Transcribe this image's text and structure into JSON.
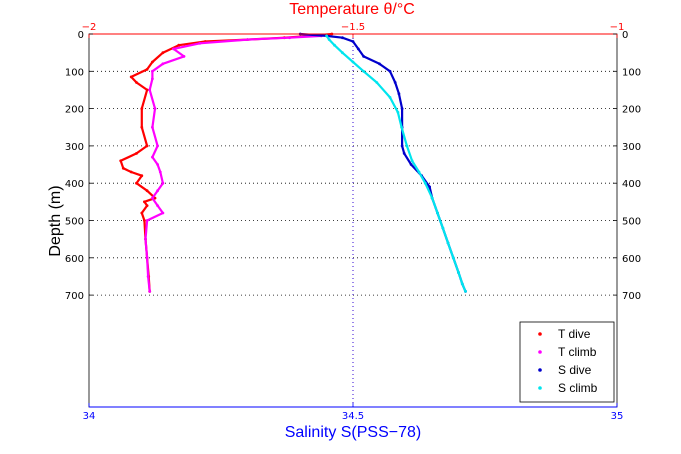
{
  "chart_data": {
    "type": "scatter",
    "top_axis": {
      "label": "Temperature θ/°C",
      "range": [
        -2,
        -1
      ],
      "ticks": [
        {
          "value": -2,
          "label": "−2"
        },
        {
          "value": -1.5,
          "label": "−1.5"
        },
        {
          "value": -1,
          "label": "−1"
        }
      ]
    },
    "bottom_axis": {
      "label": "Salinity S(PSS−78)",
      "range": [
        34,
        35
      ],
      "ticks": [
        {
          "value": 34,
          "label": "34"
        },
        {
          "value": 34.5,
          "label": "34.5"
        },
        {
          "value": 35,
          "label": "35"
        }
      ]
    },
    "y_axis": {
      "label": "Depth (m)",
      "range": [
        0,
        1000
      ],
      "inverted": true,
      "ticks": [
        {
          "value": 0,
          "label": "0"
        },
        {
          "value": 100,
          "label": "100"
        },
        {
          "value": 200,
          "label": "200"
        },
        {
          "value": 300,
          "label": "300"
        },
        {
          "value": 400,
          "label": "400"
        },
        {
          "value": 500,
          "label": "500"
        },
        {
          "value": 600,
          "label": "600"
        },
        {
          "value": 700,
          "label": "700"
        }
      ]
    },
    "grid": "dotted at labeled ticks",
    "legend_position": "bottom-right",
    "series": [
      {
        "name": "T dive",
        "axis": "top",
        "color": "#ff0000",
        "points": [
          [
            -1.54,
            0
          ],
          [
            -1.58,
            5
          ],
          [
            -1.63,
            10
          ],
          [
            -1.7,
            15
          ],
          [
            -1.78,
            20
          ],
          [
            -1.83,
            30
          ],
          [
            -1.86,
            50
          ],
          [
            -1.88,
            75
          ],
          [
            -1.89,
            95
          ],
          [
            -1.92,
            115
          ],
          [
            -1.91,
            130
          ],
          [
            -1.89,
            150
          ],
          [
            -1.9,
            200
          ],
          [
            -1.9,
            250
          ],
          [
            -1.89,
            300
          ],
          [
            -1.91,
            320
          ],
          [
            -1.94,
            340
          ],
          [
            -1.935,
            360
          ],
          [
            -1.92,
            370
          ],
          [
            -1.9,
            380
          ],
          [
            -1.91,
            400
          ],
          [
            -1.89,
            420
          ],
          [
            -1.875,
            440
          ],
          [
            -1.895,
            450
          ],
          [
            -1.89,
            460
          ],
          [
            -1.9,
            480
          ],
          [
            -1.895,
            500
          ],
          [
            -1.893,
            550
          ],
          [
            -1.89,
            600
          ],
          [
            -1.887,
            650
          ],
          [
            -1.885,
            690
          ]
        ]
      },
      {
        "name": "T climb",
        "axis": "top",
        "color": "#ff00ff",
        "points": [
          [
            -1.885,
            690
          ],
          [
            -1.888,
            650
          ],
          [
            -1.89,
            600
          ],
          [
            -1.893,
            550
          ],
          [
            -1.89,
            500
          ],
          [
            -1.86,
            480
          ],
          [
            -1.87,
            460
          ],
          [
            -1.88,
            440
          ],
          [
            -1.87,
            420
          ],
          [
            -1.86,
            400
          ],
          [
            -1.865,
            370
          ],
          [
            -1.87,
            350
          ],
          [
            -1.88,
            330
          ],
          [
            -1.87,
            300
          ],
          [
            -1.88,
            250
          ],
          [
            -1.875,
            200
          ],
          [
            -1.885,
            150
          ],
          [
            -1.88,
            120
          ],
          [
            -1.88,
            100
          ],
          [
            -1.86,
            80
          ],
          [
            -1.82,
            60
          ],
          [
            -1.84,
            40
          ],
          [
            -1.79,
            25
          ],
          [
            -1.7,
            15
          ],
          [
            -1.62,
            10
          ],
          [
            -1.56,
            5
          ]
        ]
      },
      {
        "name": "S dive",
        "axis": "bottom",
        "color": "#0000cc",
        "points": [
          [
            34.4,
            0
          ],
          [
            34.45,
            5
          ],
          [
            34.48,
            10
          ],
          [
            34.5,
            20
          ],
          [
            34.51,
            40
          ],
          [
            34.52,
            60
          ],
          [
            34.55,
            80
          ],
          [
            34.57,
            100
          ],
          [
            34.58,
            130
          ],
          [
            34.587,
            160
          ],
          [
            34.593,
            200
          ],
          [
            34.593,
            250
          ],
          [
            34.593,
            300
          ],
          [
            34.597,
            320
          ],
          [
            34.61,
            350
          ],
          [
            34.63,
            380
          ],
          [
            34.645,
            410
          ],
          [
            34.65,
            440
          ],
          [
            34.66,
            480
          ],
          [
            34.67,
            520
          ],
          [
            34.68,
            560
          ],
          [
            34.69,
            600
          ],
          [
            34.7,
            640
          ],
          [
            34.707,
            670
          ],
          [
            34.713,
            690
          ]
        ]
      },
      {
        "name": "S climb",
        "axis": "bottom",
        "color": "#00e5ee",
        "points": [
          [
            34.713,
            690
          ],
          [
            34.707,
            670
          ],
          [
            34.7,
            640
          ],
          [
            34.69,
            600
          ],
          [
            34.68,
            560
          ],
          [
            34.67,
            520
          ],
          [
            34.66,
            480
          ],
          [
            34.65,
            440
          ],
          [
            34.637,
            400
          ],
          [
            34.625,
            370
          ],
          [
            34.612,
            340
          ],
          [
            34.602,
            300
          ],
          [
            34.592,
            250
          ],
          [
            34.585,
            210
          ],
          [
            34.57,
            170
          ],
          [
            34.545,
            130
          ],
          [
            34.52,
            100
          ],
          [
            34.5,
            75
          ],
          [
            34.48,
            50
          ],
          [
            34.465,
            30
          ],
          [
            34.455,
            15
          ],
          [
            34.45,
            5
          ]
        ]
      }
    ]
  }
}
